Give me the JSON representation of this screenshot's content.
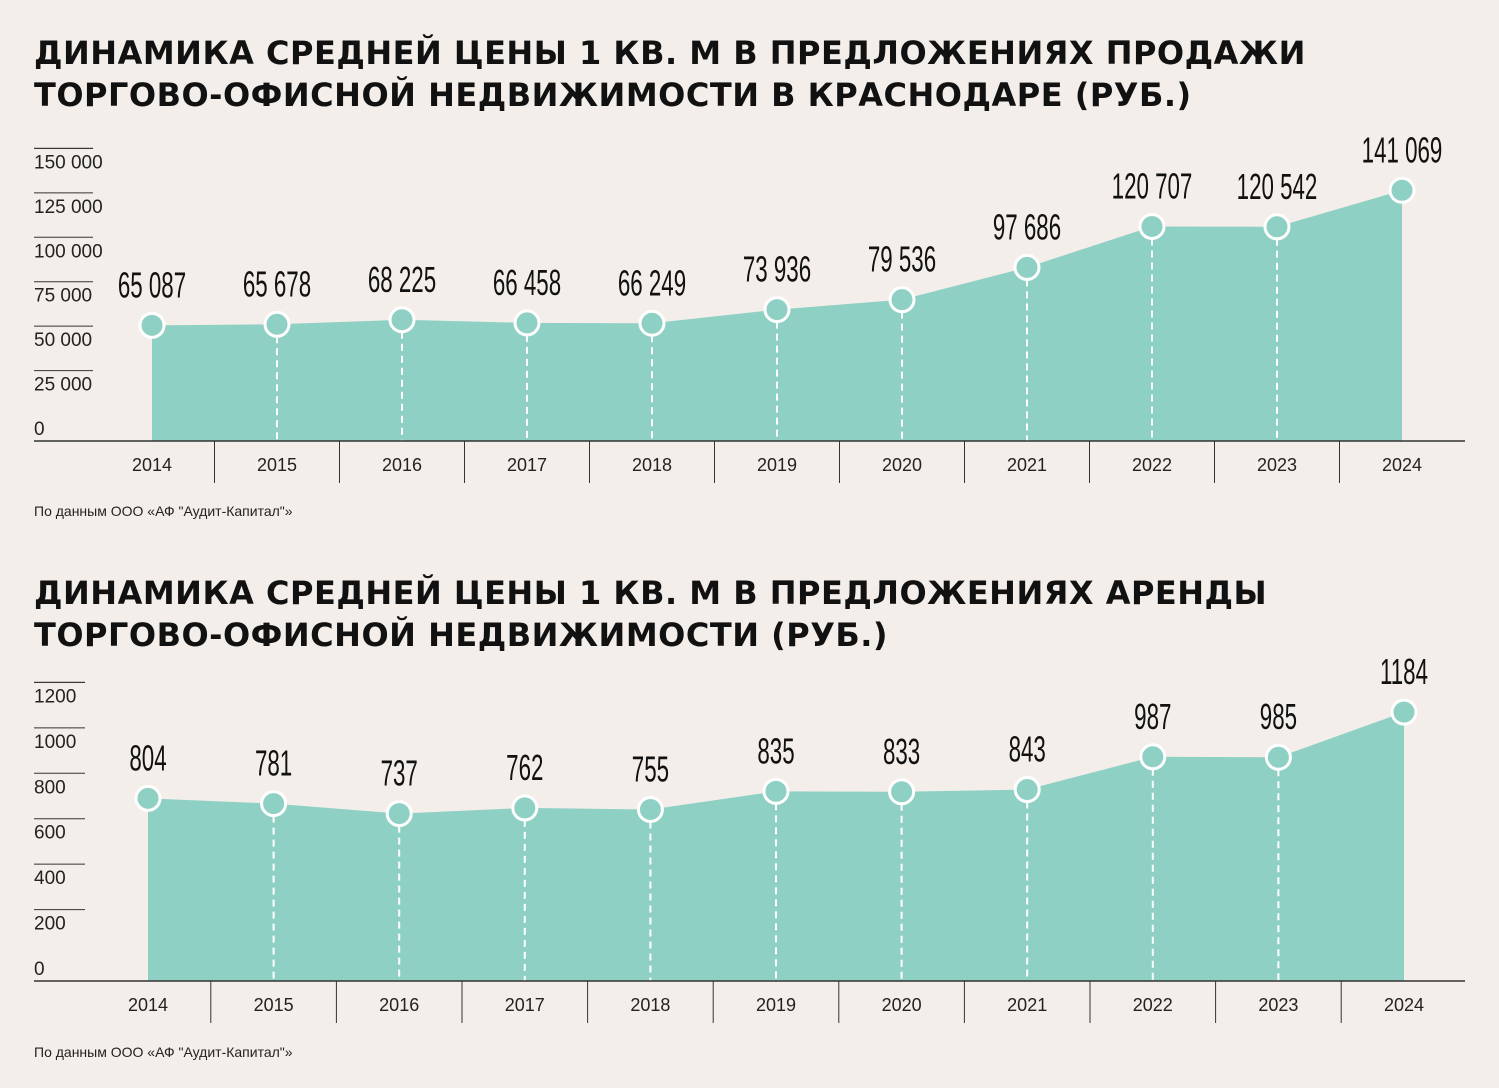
{
  "colors": {
    "background": "#f3eee9",
    "area_fill": "#8fd0c4",
    "marker_stroke": "#ffffff",
    "axis_line": "#333333",
    "text": "#111111"
  },
  "charts": [
    {
      "id": "sale",
      "title_line1": "ДИНАМИКА СРЕДНЕЙ ЦЕНЫ 1 КВ. М В ПРЕДЛОЖЕНИЯХ ПРОДАЖИ",
      "title_line2": "ТОРГОВО-ОФИСНОЙ НЕДВИЖИМОСТИ В КРАСНОДАРЕ (РУБ.)",
      "source": "По данным ООО «АФ \"Аудит-Капитал\"»"
    },
    {
      "id": "rent",
      "title_line1": "ДИНАМИКА СРЕДНЕЙ ЦЕНЫ 1 КВ. М В ПРЕДЛОЖЕНИЯХ АРЕНДЫ",
      "title_line2": "ТОРГОВО-ОФИСНОЙ НЕДВИЖИМОСТИ (РУБ.)",
      "source": "По данным ООО «АФ \"Аудит-Капитал\"»"
    }
  ],
  "chart_data": [
    {
      "type": "area",
      "title": "ДИНАМИКА СРЕДНЕЙ ЦЕНЫ 1 КВ. М В ПРЕДЛОЖЕНИЯХ ПРОДАЖИ ТОРГОВО-ОФИСНОЙ НЕДВИЖИМОСТИ В КРАСНОДАРЕ (РУБ.)",
      "categories": [
        "2014",
        "2015",
        "2016",
        "2017",
        "2018",
        "2019",
        "2020",
        "2021",
        "2022",
        "2023",
        "2024"
      ],
      "values": [
        65087,
        65678,
        68225,
        66458,
        66249,
        73936,
        79536,
        97686,
        120707,
        120542,
        141069
      ],
      "value_labels": [
        "65 087",
        "65 678",
        "68 225",
        "66 458",
        "66 249",
        "73 936",
        "79 536",
        "97 686",
        "120 707",
        "120 542",
        "141 069"
      ],
      "y_ticks": [
        0,
        25000,
        50000,
        75000,
        100000,
        125000,
        150000
      ],
      "y_tick_labels": [
        "0",
        "25 000",
        "50 000",
        "75 000",
        "100 000",
        "125 000",
        "150 000"
      ],
      "ylim": [
        0,
        175000
      ],
      "grid": false,
      "legend": "none",
      "xlabel": "",
      "ylabel": ""
    },
    {
      "type": "area",
      "title": "ДИНАМИКА СРЕДНЕЙ ЦЕНЫ 1 КВ. М В ПРЕДЛОЖЕНИЯХ АРЕНДЫ ТОРГОВО-ОФИСНОЙ НЕДВИЖИМОСТИ (РУБ.)",
      "categories": [
        "2014",
        "2015",
        "2016",
        "2017",
        "2018",
        "2019",
        "2020",
        "2021",
        "2022",
        "2023",
        "2024"
      ],
      "values": [
        804,
        781,
        737,
        762,
        755,
        835,
        833,
        843,
        987,
        985,
        1184
      ],
      "value_labels": [
        "804",
        "781",
        "737",
        "762",
        "755",
        "835",
        "833",
        "843",
        "987",
        "985",
        "1184"
      ],
      "y_ticks": [
        0,
        200,
        400,
        600,
        800,
        1000,
        1200
      ],
      "y_tick_labels": [
        "0",
        "200",
        "400",
        "600",
        "800",
        "1000",
        "1200"
      ],
      "ylim": [
        0,
        1400
      ],
      "grid": false,
      "legend": "none",
      "xlabel": "",
      "ylabel": ""
    }
  ]
}
